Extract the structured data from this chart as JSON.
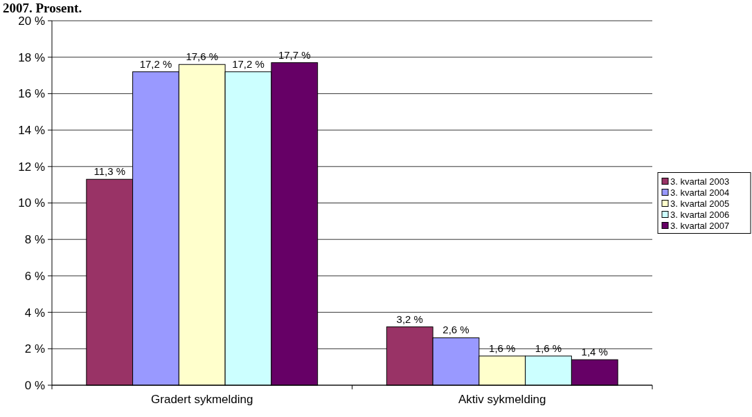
{
  "chart_data": {
    "type": "bar",
    "title": "2007. Prosent.",
    "categories": [
      "Gradert sykmelding",
      "Aktiv sykmelding"
    ],
    "series": [
      {
        "name": "3. kvartal 2003",
        "color": "#993366",
        "values": [
          11.3,
          3.2
        ],
        "value_labels": [
          "11,3 %",
          "3,2 %"
        ]
      },
      {
        "name": "3. kvartal 2004",
        "color": "#9999ff",
        "values": [
          17.2,
          2.6
        ],
        "value_labels": [
          "17,2 %",
          "2,6 %"
        ]
      },
      {
        "name": "3. kvartal 2005",
        "color": "#ffffcc",
        "values": [
          17.6,
          1.6
        ],
        "value_labels": [
          "17,6 %",
          "1,6 %"
        ]
      },
      {
        "name": "3. kvartal 2006",
        "color": "#ccffff",
        "values": [
          17.2,
          1.6
        ],
        "value_labels": [
          "17,2 %",
          "1,6 %"
        ]
      },
      {
        "name": "3. kvartal 2007",
        "color": "#660066",
        "values": [
          17.7,
          1.4
        ],
        "value_labels": [
          "17,7 %",
          "1,4 %"
        ]
      }
    ],
    "ylim": [
      0,
      20
    ],
    "yticks": [
      {
        "value": 0,
        "label": "0 %"
      },
      {
        "value": 2,
        "label": "2 %"
      },
      {
        "value": 4,
        "label": "4 %"
      },
      {
        "value": 6,
        "label": "6 %"
      },
      {
        "value": 8,
        "label": "8 %"
      },
      {
        "value": 10,
        "label": "10 %"
      },
      {
        "value": 12,
        "label": "12 %"
      },
      {
        "value": 14,
        "label": "14 %"
      },
      {
        "value": 16,
        "label": "16 %"
      },
      {
        "value": 18,
        "label": "18 %"
      },
      {
        "value": 20,
        "label": "20 %"
      }
    ],
    "grid": "y",
    "legend": "right"
  }
}
